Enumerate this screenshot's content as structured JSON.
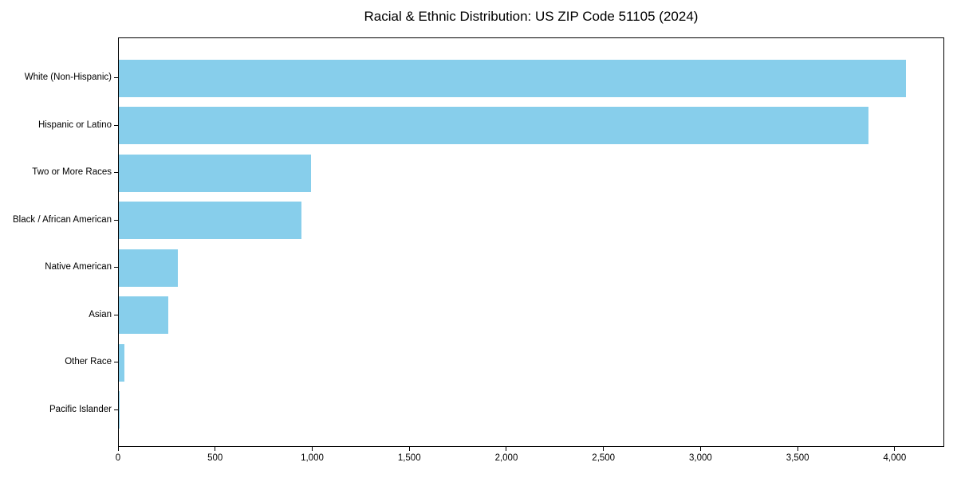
{
  "chart_data": {
    "type": "bar",
    "orientation": "horizontal",
    "title": "Racial & Ethnic Distribution: US ZIP Code 51105 (2024)",
    "categories": [
      "White (Non-Hispanic)",
      "Hispanic or Latino",
      "Two or More Races",
      "Black / African American",
      "Native American",
      "Asian",
      "Other Race",
      "Pacific Islander"
    ],
    "values": [
      4055,
      3860,
      990,
      940,
      305,
      255,
      28,
      2
    ],
    "xlabel": "",
    "ylabel": "",
    "xlim": [
      0,
      4255
    ],
    "xticks": [
      0,
      500,
      1000,
      1500,
      2000,
      2500,
      3000,
      3500,
      4000
    ],
    "grid": false,
    "legend": null,
    "bar_color": "#87CEEB",
    "axis_color": "#000000",
    "text_color": "#000000"
  }
}
